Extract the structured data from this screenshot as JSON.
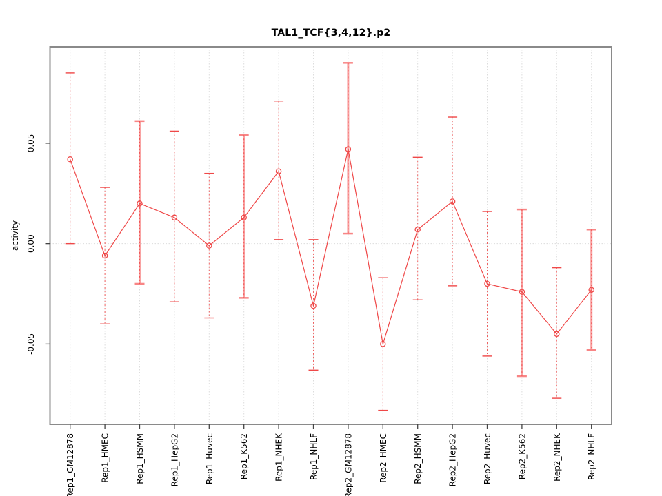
{
  "colors": {
    "series": "#ef4848",
    "error_band": "#f9a2a2",
    "error_cap_solid": "#f88585",
    "grid": "#dcdcdc",
    "border": "#8a8a8a",
    "tick": "#444444",
    "text": "#000000",
    "background": "#ffffff"
  },
  "chart_data": {
    "type": "line",
    "title": "TAL1_TCF{3,4,12}.p2",
    "ylabel": "activity",
    "xlabel": "",
    "legend_position": "none",
    "grid": "dotted vertical gridline at each category; dotted horizontal line at y=0",
    "marker": "open-circle",
    "ylim": [
      -0.09,
      0.098
    ],
    "y_ticks": [
      {
        "value": 0.05,
        "label": "0.05"
      },
      {
        "value": 0.0,
        "label": "0.00"
      },
      {
        "value": -0.05,
        "label": "-0.05"
      }
    ],
    "categories": [
      "Rep1_GM12878",
      "Rep1_HMEC",
      "Rep1_HSMM",
      "Rep1_HepG2",
      "Rep1_Huvec",
      "Rep1_K562",
      "Rep1_NHEK",
      "Rep1_NHLF",
      "Rep2_GM12878",
      "Rep2_HMEC",
      "Rep2_HSMM",
      "Rep2_HepG2",
      "Rep2_Huvec",
      "Rep2_K562",
      "Rep2_NHEK",
      "Rep2_NHLF"
    ],
    "series": [
      {
        "name": "activity",
        "values": [
          0.042,
          -0.006,
          0.02,
          0.013,
          -0.001,
          0.013,
          0.036,
          -0.031,
          0.047,
          -0.05,
          0.007,
          0.021,
          -0.02,
          -0.024,
          -0.045,
          -0.023
        ],
        "error_high": [
          0.085,
          0.028,
          0.061,
          0.056,
          0.035,
          0.054,
          0.071,
          0.002,
          0.09,
          -0.017,
          0.043,
          0.063,
          0.016,
          0.017,
          -0.012,
          0.007
        ],
        "error_low": [
          0.0,
          -0.04,
          -0.02,
          -0.029,
          -0.037,
          -0.027,
          0.002,
          -0.063,
          0.005,
          -0.083,
          -0.028,
          -0.021,
          -0.056,
          -0.066,
          -0.077,
          -0.053
        ],
        "error_bar_style": [
          "thin-dotted",
          "thin-dotted",
          "thick-solid",
          "thin-dotted",
          "thin-dotted",
          "thick-solid",
          "thin-dotted",
          "thin-dotted",
          "thick-solid",
          "thin-dotted",
          "thin-dotted",
          "thin-dotted",
          "thin-dotted",
          "thick-solid",
          "thin-dotted",
          "thick-solid"
        ]
      }
    ]
  }
}
